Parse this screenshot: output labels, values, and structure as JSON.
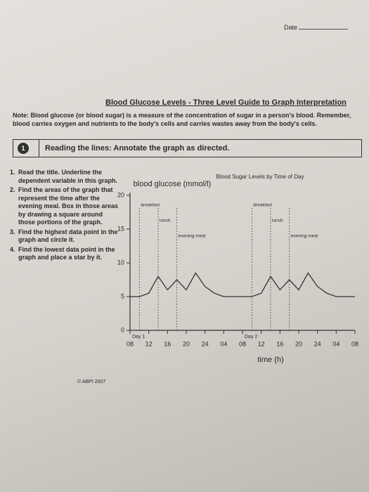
{
  "header": {
    "date_label": "Date"
  },
  "title": "Blood Glucose Levels - Three Level Guide to Graph Interpretation",
  "note": "Note: Blood glucose (or blood sugar) is a measure of the concentration of sugar in a person's blood. Remember, blood carries oxygen and nutrients to the body's cells and carries wastes away from the body's cells.",
  "task": {
    "number": "1",
    "text": "Reading the lines: Annotate the graph as directed."
  },
  "instructions": [
    {
      "number": "1.",
      "text": "Read the title. Underline the dependent variable in this graph."
    },
    {
      "number": "2.",
      "text": "Find the areas of the graph that represent the time after the evening meal. Box in those areas by drawing a square around those portions of the graph."
    },
    {
      "number": "3.",
      "text": "Find the highest data point in the graph and circle it."
    },
    {
      "number": "4.",
      "text": "Find the lowest data point in the graph and place a star by it."
    }
  ],
  "chart_data": {
    "type": "line",
    "title": "Blood Sugar Levels by Time of Day",
    "ylabel": "blood glucose (mmol/l)",
    "xlabel": "time (h)",
    "x": [
      0,
      2,
      4,
      6,
      8,
      10,
      12,
      14,
      16,
      18,
      20,
      22,
      24,
      26,
      28,
      30,
      32,
      34,
      36,
      38,
      40,
      42,
      44,
      46,
      48
    ],
    "values": [
      5,
      5,
      5.5,
      8,
      6,
      7.5,
      6,
      8.5,
      6.5,
      5.5,
      5,
      5,
      5,
      5,
      5.5,
      8,
      6,
      7.5,
      6,
      8.5,
      6.5,
      5.5,
      5,
      5,
      5
    ],
    "color": "#333333",
    "xlim": [
      0,
      48
    ],
    "ylim": [
      0,
      20
    ],
    "yticks": [
      0,
      5,
      10,
      15,
      20
    ],
    "xticks": [
      {
        "value": 0,
        "label": "08"
      },
      {
        "value": 4,
        "label": "12"
      },
      {
        "value": 8,
        "label": "16"
      },
      {
        "value": 12,
        "label": "20"
      },
      {
        "value": 16,
        "label": "24"
      },
      {
        "value": 20,
        "label": "04"
      },
      {
        "value": 24,
        "label": "08"
      },
      {
        "value": 28,
        "label": "12"
      },
      {
        "value": 32,
        "label": "16"
      },
      {
        "value": 36,
        "label": "20"
      },
      {
        "value": 40,
        "label": "24"
      },
      {
        "value": 44,
        "label": "04"
      },
      {
        "value": 48,
        "label": "08"
      }
    ],
    "annotations": [
      {
        "text": "breakfast",
        "x": 2
      },
      {
        "text": "lunch",
        "x": 6
      },
      {
        "text": "evening meal",
        "x": 10
      },
      {
        "text": "breakfast",
        "x": 26
      },
      {
        "text": "lunch",
        "x": 30
      },
      {
        "text": "evening meal",
        "x": 34
      }
    ],
    "day_labels": [
      {
        "text": "Day 1",
        "x": 0
      },
      {
        "text": "Day 2",
        "x": 24
      }
    ]
  },
  "copyright": "© ABPI 2007"
}
